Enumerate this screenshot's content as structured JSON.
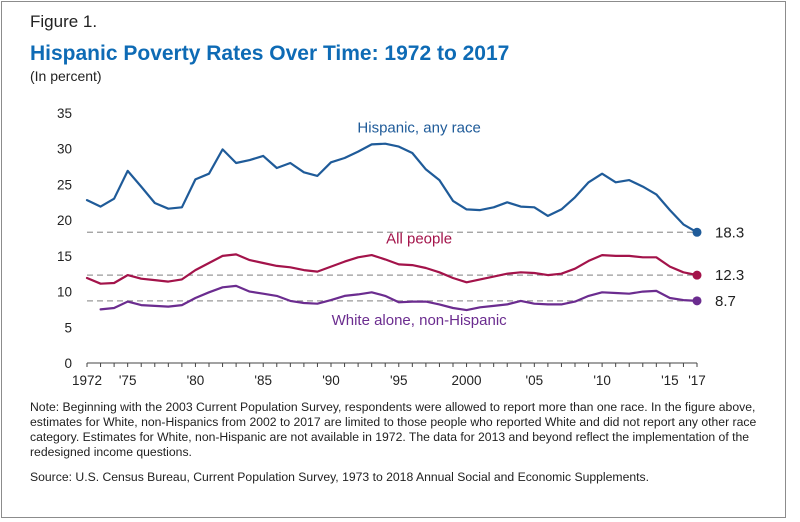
{
  "figure_label": "Figure 1.",
  "title": "Hispanic Poverty Rates Over Time: 1972 to 2017",
  "subtitle": "(In percent)",
  "note": "Note: Beginning with the 2003 Current Population Survey, respondents were allowed to report more than one race. In the figure above, estimates for White, non-Hispanics from 2002 to 2017 are limited to those people who reported White and did not report any other race category. Estimates for White, non-Hispanic are not available in 1972. The data for 2013 and beyond reflect the implementation of the redesigned income questions.",
  "source": "Source: U.S. Census Bureau, Current Population Survey, 1973 to 2018 Annual Social and Economic Supplements.",
  "colors": {
    "hispanic": "#1f5b99",
    "all_people": "#a3134a",
    "white": "#6b2c8f",
    "reference_line": "#9a9a9a",
    "title": "#0e6bb5"
  },
  "chart_data": {
    "type": "line",
    "ylim": [
      0,
      35
    ],
    "xlim": [
      1972,
      2017
    ],
    "y_ticks": [
      {
        "value": 0,
        "label": "0"
      },
      {
        "value": 5,
        "label": "5"
      },
      {
        "value": 10,
        "label": "10"
      },
      {
        "value": 15,
        "label": "15"
      },
      {
        "value": 20,
        "label": "20"
      },
      {
        "value": 25,
        "label": "25"
      },
      {
        "value": 30,
        "label": "30"
      },
      {
        "value": 35,
        "label": "35"
      }
    ],
    "x_ticks": [
      {
        "value": 1972,
        "label": "1972"
      },
      {
        "value": 1975,
        "label": "'75"
      },
      {
        "value": 1980,
        "label": "'80"
      },
      {
        "value": 1985,
        "label": "'85"
      },
      {
        "value": 1990,
        "label": "'90"
      },
      {
        "value": 1995,
        "label": "'95"
      },
      {
        "value": 2000,
        "label": "2000"
      },
      {
        "value": 2005,
        "label": "'05"
      },
      {
        "value": 2010,
        "label": "'10"
      },
      {
        "value": 2015,
        "label": "'15"
      },
      {
        "value": 2017,
        "label": "'17"
      }
    ],
    "grid": false,
    "reference_lines": [
      {
        "y": 18.3,
        "label": "18.3",
        "series": "hispanic"
      },
      {
        "y": 12.3,
        "label": "12.3",
        "series": "all_people"
      },
      {
        "y": 8.7,
        "label": "8.7",
        "series": "white"
      }
    ],
    "series": [
      {
        "key": "hispanic",
        "name": "Hispanic, any race",
        "x": [
          1972,
          1973,
          1974,
          1975,
          1976,
          1977,
          1978,
          1979,
          1980,
          1981,
          1982,
          1983,
          1984,
          1985,
          1986,
          1987,
          1988,
          1989,
          1990,
          1991,
          1992,
          1993,
          1994,
          1995,
          1996,
          1997,
          1998,
          1999,
          2000,
          2001,
          2002,
          2003,
          2004,
          2005,
          2006,
          2007,
          2008,
          2009,
          2010,
          2011,
          2012,
          2013,
          2014,
          2015,
          2016,
          2017
        ],
        "values": [
          22.8,
          21.9,
          23.0,
          26.9,
          24.7,
          22.4,
          21.6,
          21.8,
          25.7,
          26.5,
          29.9,
          28.0,
          28.4,
          29.0,
          27.3,
          28.0,
          26.7,
          26.2,
          28.1,
          28.7,
          29.6,
          30.6,
          30.7,
          30.3,
          29.4,
          27.1,
          25.6,
          22.7,
          21.5,
          21.4,
          21.8,
          22.5,
          21.9,
          21.8,
          20.6,
          21.5,
          23.2,
          25.3,
          26.5,
          25.3,
          25.6,
          24.7,
          23.6,
          21.4,
          19.4,
          18.3
        ]
      },
      {
        "key": "all_people",
        "name": "All people",
        "x": [
          1972,
          1973,
          1974,
          1975,
          1976,
          1977,
          1978,
          1979,
          1980,
          1981,
          1982,
          1983,
          1984,
          1985,
          1986,
          1987,
          1988,
          1989,
          1990,
          1991,
          1992,
          1993,
          1994,
          1995,
          1996,
          1997,
          1998,
          1999,
          2000,
          2001,
          2002,
          2003,
          2004,
          2005,
          2006,
          2007,
          2008,
          2009,
          2010,
          2011,
          2012,
          2013,
          2014,
          2015,
          2016,
          2017
        ],
        "values": [
          11.9,
          11.1,
          11.2,
          12.3,
          11.8,
          11.6,
          11.4,
          11.7,
          13.0,
          14.0,
          15.0,
          15.2,
          14.4,
          14.0,
          13.6,
          13.4,
          13.0,
          12.8,
          13.5,
          14.2,
          14.8,
          15.1,
          14.5,
          13.8,
          13.7,
          13.3,
          12.7,
          11.9,
          11.3,
          11.7,
          12.1,
          12.5,
          12.7,
          12.6,
          12.3,
          12.5,
          13.2,
          14.3,
          15.1,
          15.0,
          15.0,
          14.8,
          14.8,
          13.5,
          12.7,
          12.3
        ]
      },
      {
        "key": "white",
        "name": "White alone, non-Hispanic",
        "x": [
          1973,
          1974,
          1975,
          1976,
          1977,
          1978,
          1979,
          1980,
          1981,
          1982,
          1983,
          1984,
          1985,
          1986,
          1987,
          1988,
          1989,
          1990,
          1991,
          1992,
          1993,
          1994,
          1995,
          1996,
          1997,
          1998,
          1999,
          2000,
          2001,
          2002,
          2003,
          2004,
          2005,
          2006,
          2007,
          2008,
          2009,
          2010,
          2011,
          2012,
          2013,
          2014,
          2015,
          2016,
          2017
        ],
        "values": [
          7.5,
          7.7,
          8.6,
          8.1,
          8.0,
          7.9,
          8.1,
          9.1,
          9.9,
          10.6,
          10.8,
          10.0,
          9.7,
          9.4,
          8.7,
          8.4,
          8.3,
          8.8,
          9.4,
          9.6,
          9.9,
          9.4,
          8.5,
          8.6,
          8.6,
          8.2,
          7.7,
          7.4,
          7.8,
          8.0,
          8.2,
          8.7,
          8.3,
          8.2,
          8.2,
          8.6,
          9.4,
          9.9,
          9.8,
          9.7,
          10.0,
          10.1,
          9.1,
          8.8,
          8.7
        ]
      }
    ],
    "series_labels": [
      {
        "series": "hispanic",
        "text": "Hispanic, any race",
        "x": 1996.5,
        "y": 32.3
      },
      {
        "series": "all_people",
        "text": "All people",
        "x": 1996.5,
        "y": 16.7
      },
      {
        "series": "white",
        "text": "White alone, non-Hispanic",
        "x": 1996.5,
        "y": 5.3
      }
    ]
  }
}
